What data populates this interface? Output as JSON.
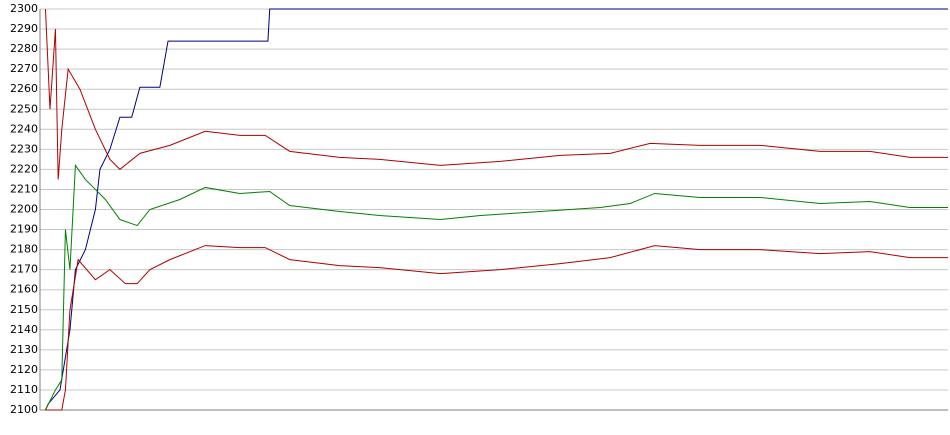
{
  "chart_data": {
    "type": "line",
    "ylim": [
      2100,
      2300
    ],
    "yticks": [
      2100,
      2110,
      2120,
      2130,
      2140,
      2150,
      2160,
      2170,
      2180,
      2190,
      2200,
      2210,
      2220,
      2230,
      2240,
      2250,
      2260,
      2270,
      2280,
      2290,
      2300
    ],
    "xlim": [
      0,
      100
    ],
    "grid": true,
    "series": [
      {
        "color": "#000080",
        "x": [
          0.6,
          0.9,
          2.2,
          3.3,
          3.9,
          5.0,
          6.1,
          6.6,
          7.7,
          8.8,
          10.1,
          11.0,
          13.2,
          14.1,
          25.1,
          25.3,
          100
        ],
        "values": [
          2100,
          2103,
          2110,
          2140,
          2170,
          2180,
          2200,
          2220,
          2230,
          2246,
          2246,
          2261,
          2261,
          2284,
          2284,
          2300,
          2300
        ]
      },
      {
        "color": "#b00000",
        "x": [
          0.6,
          1.1,
          1.7,
          2.0,
          2.4,
          3.1,
          4.4,
          6.1,
          7.7,
          8.8,
          11.0,
          14.3,
          18.2,
          22.0,
          24.8,
          27.5,
          33.0,
          37.4,
          44.1,
          50.7,
          57.3,
          62.8,
          67.2,
          72.7,
          79.3,
          85.9,
          91.4,
          95.8,
          100
        ],
        "values": [
          2300,
          2250,
          2290,
          2215,
          2240,
          2270,
          2260,
          2240,
          2225,
          2220,
          2228,
          2232,
          2239,
          2237,
          2237,
          2229,
          2226,
          2225,
          2222,
          2224,
          2227,
          2228,
          2233,
          2232,
          2232,
          2229,
          2229,
          2226,
          2226
        ]
      },
      {
        "color": "#008000",
        "x": [
          0.6,
          1.7,
          2.4,
          2.8,
          3.3,
          3.9,
          5.0,
          6.1,
          7.2,
          8.8,
          10.7,
          12.1,
          15.4,
          18.2,
          22.0,
          25.3,
          27.5,
          33.0,
          37.4,
          44.1,
          48.5,
          55.1,
          61.7,
          65.0,
          67.7,
          72.7,
          79.3,
          85.9,
          91.4,
          95.8,
          100
        ],
        "values": [
          2100,
          2110,
          2115,
          2190,
          2170,
          2222,
          2215,
          2210,
          2205,
          2195,
          2192,
          2200,
          2205,
          2211,
          2208,
          2209,
          2202,
          2199,
          2197,
          2195,
          2197,
          2199,
          2201,
          2203,
          2208,
          2206,
          2206,
          2203,
          2204,
          2201,
          2201
        ]
      },
      {
        "color": "#b00000",
        "x": [
          0.6,
          1.1,
          2.4,
          2.8,
          3.3,
          4.2,
          6.1,
          7.7,
          9.4,
          10.7,
          12.1,
          14.3,
          18.2,
          22.0,
          24.8,
          27.5,
          33.0,
          37.4,
          44.1,
          50.7,
          57.3,
          62.8,
          67.7,
          72.7,
          79.3,
          85.9,
          91.4,
          95.8,
          100
        ],
        "values": [
          2100,
          2100,
          2100,
          2110,
          2150,
          2175,
          2165,
          2170,
          2163,
          2163,
          2170,
          2175,
          2182,
          2181,
          2181,
          2175,
          2172,
          2171,
          2168,
          2170,
          2173,
          2176,
          2182,
          2180,
          2180,
          2178,
          2179,
          2176,
          2176
        ]
      }
    ]
  }
}
